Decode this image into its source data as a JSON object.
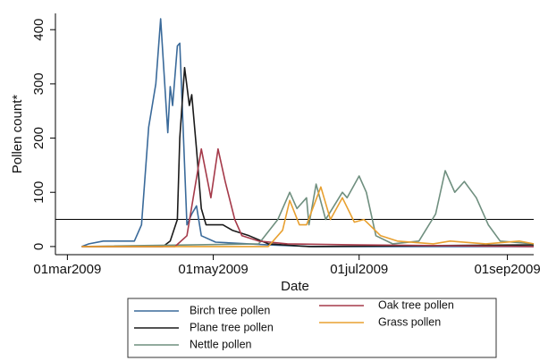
{
  "chart_data": {
    "type": "line",
    "xlabel": "Date",
    "ylabel": "Pollen count*",
    "xlim": [
      "2009-02-24",
      "2009-09-12"
    ],
    "xticks": [
      {
        "value": "2009-03-01",
        "label": "01mar2009"
      },
      {
        "value": "2009-05-01",
        "label": "01may2009"
      },
      {
        "value": "2009-07-01",
        "label": "01jul2009"
      },
      {
        "value": "2009-09-01",
        "label": "01sep2009"
      }
    ],
    "ylim": [
      -15,
      430
    ],
    "yticks": [
      0,
      100,
      200,
      300,
      400
    ],
    "reference_line": 50,
    "series": [
      {
        "name": "Birch tree pollen",
        "color": "#3a6a9a",
        "x": [
          "2009-03-07",
          "2009-03-10",
          "2009-03-16",
          "2009-03-29",
          "2009-04-01",
          "2009-04-04",
          "2009-04-07",
          "2009-04-09",
          "2009-04-12",
          "2009-04-13",
          "2009-04-14",
          "2009-04-16",
          "2009-04-17",
          "2009-04-20",
          "2009-04-22",
          "2009-04-24",
          "2009-04-26",
          "2009-05-02",
          "2009-05-24",
          "2009-06-12",
          "2009-09-12"
        ],
        "values": [
          0,
          5,
          10,
          10,
          40,
          220,
          300,
          420,
          210,
          295,
          260,
          370,
          375,
          40,
          60,
          75,
          20,
          8,
          3,
          0,
          0
        ]
      },
      {
        "name": "Plane tree pollen",
        "color": "#1a1a1a",
        "x": [
          "2009-03-07",
          "2009-04-10",
          "2009-04-13",
          "2009-04-16",
          "2009-04-17",
          "2009-04-19",
          "2009-04-21",
          "2009-04-22",
          "2009-04-24",
          "2009-04-26",
          "2009-04-28",
          "2009-05-05",
          "2009-05-09",
          "2009-05-16",
          "2009-05-24",
          "2009-06-10",
          "2009-09-12"
        ],
        "values": [
          0,
          0,
          10,
          50,
          200,
          330,
          260,
          280,
          180,
          70,
          40,
          40,
          30,
          20,
          5,
          0,
          3
        ]
      },
      {
        "name": "Nettle pollen",
        "color": "#6f8f7f",
        "x": [
          "2009-03-07",
          "2009-05-20",
          "2009-05-28",
          "2009-06-02",
          "2009-06-05",
          "2009-06-09",
          "2009-06-10",
          "2009-06-13",
          "2009-06-17",
          "2009-06-24",
          "2009-06-26",
          "2009-07-01",
          "2009-07-04",
          "2009-07-08",
          "2009-07-15",
          "2009-07-26",
          "2009-08-02",
          "2009-08-06",
          "2009-08-10",
          "2009-08-14",
          "2009-08-19",
          "2009-08-24",
          "2009-08-29",
          "2009-09-12"
        ],
        "values": [
          0,
          5,
          50,
          100,
          70,
          90,
          40,
          115,
          50,
          100,
          90,
          130,
          100,
          20,
          5,
          10,
          60,
          140,
          100,
          120,
          90,
          40,
          10,
          5
        ]
      },
      {
        "name": "Oak tree pollen",
        "color": "#a53a4a",
        "x": [
          "2009-03-07",
          "2009-04-15",
          "2009-04-20",
          "2009-04-26",
          "2009-04-30",
          "2009-05-03",
          "2009-05-06",
          "2009-05-10",
          "2009-05-13",
          "2009-05-20",
          "2009-06-01",
          "2009-07-01",
          "2009-09-12"
        ],
        "values": [
          0,
          0,
          20,
          180,
          90,
          180,
          120,
          50,
          20,
          10,
          5,
          3,
          0
        ]
      },
      {
        "name": "Grass pollen",
        "color": "#e8a030",
        "x": [
          "2009-03-07",
          "2009-05-24",
          "2009-05-30",
          "2009-06-02",
          "2009-06-06",
          "2009-06-09",
          "2009-06-15",
          "2009-06-19",
          "2009-06-24",
          "2009-06-29",
          "2009-07-03",
          "2009-07-10",
          "2009-07-17",
          "2009-08-01",
          "2009-08-08",
          "2009-08-23",
          "2009-09-06",
          "2009-09-12"
        ],
        "values": [
          0,
          0,
          30,
          85,
          40,
          40,
          110,
          50,
          90,
          45,
          50,
          20,
          10,
          5,
          10,
          5,
          10,
          5
        ]
      }
    ]
  }
}
